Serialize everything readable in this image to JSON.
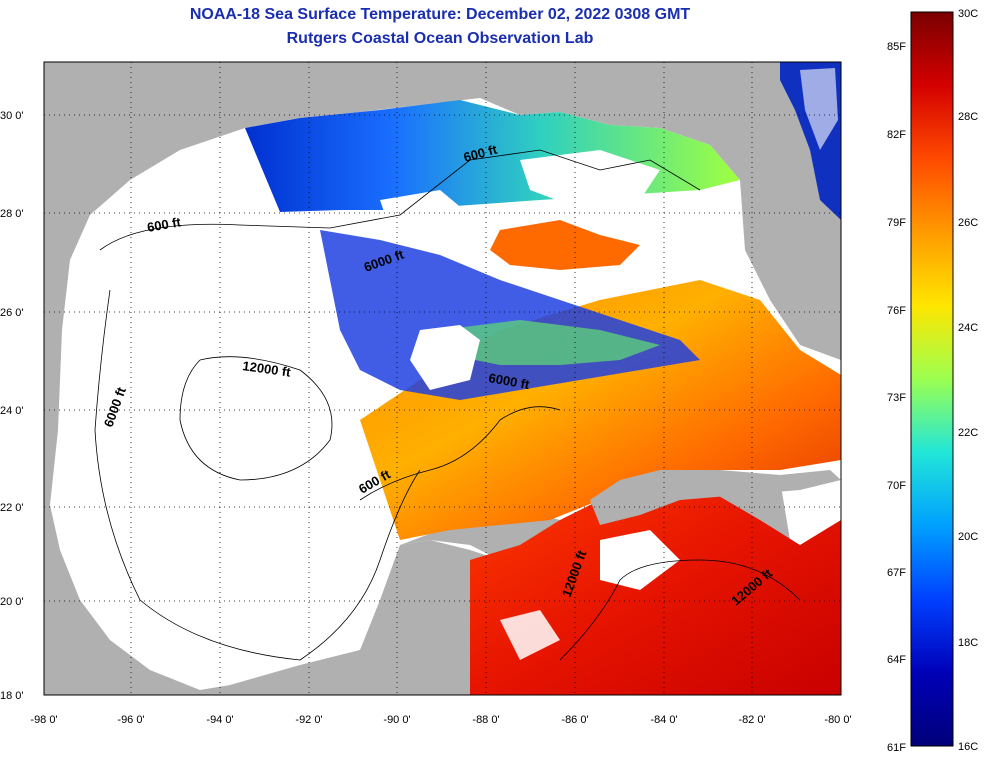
{
  "title": {
    "line1": "NOAA-18 Sea Surface Temperature:  December 02, 2022 0308 GMT",
    "line2": "Rutgers Coastal Ocean Observation Lab"
  },
  "map": {
    "lat_ticks": [
      "30 0'",
      "28 0'",
      "26 0'",
      "24 0'",
      "22 0'",
      "20 0'",
      "18 0'"
    ],
    "lon_ticks": [
      "-98 0'",
      "-96 0'",
      "-94 0'",
      "-92 0'",
      "-90 0'",
      "-88 0'",
      "-86 0'",
      "-84 0'",
      "-82 0'",
      "-80 0'"
    ],
    "contour_labels": [
      "600 ft",
      "600 ft",
      "6000 ft",
      "12000 ft",
      "6000 ft",
      "6000 ft",
      "600 ft",
      "12000 ft",
      "12000 ft"
    ],
    "colors": {
      "land": "#b0b0b0",
      "cloud": "#ffffff",
      "frame": "#000000"
    }
  },
  "colorbar": {
    "celsius_labels": [
      "30C",
      "28C",
      "26C",
      "24C",
      "22C",
      "20C",
      "18C",
      "16C"
    ],
    "fahrenheit_labels": [
      "85F",
      "82F",
      "79F",
      "76F",
      "73F",
      "70F",
      "67F",
      "64F",
      "61F"
    ],
    "gradient": [
      "#7a0000",
      "#d40000",
      "#ff4a00",
      "#ff9a00",
      "#ffe600",
      "#9cff50",
      "#22e6d8",
      "#00a0ff",
      "#0040ff",
      "#0000b8",
      "#00007a"
    ]
  }
}
